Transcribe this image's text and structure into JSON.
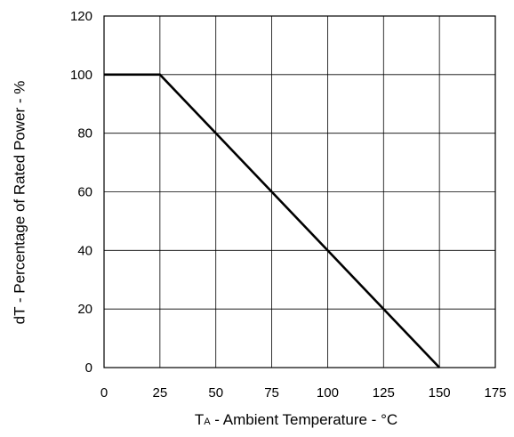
{
  "chart_data": {
    "type": "line",
    "xlabel_main": "T",
    "xlabel_sub": "A",
    "xlabel_rest": " - Ambient Temperature - °C",
    "ylabel": "dT - Percentage of Rated Power - %",
    "xlim": [
      0,
      175
    ],
    "ylim": [
      0,
      120
    ],
    "x_ticks": [
      0,
      25,
      50,
      75,
      100,
      125,
      150,
      175
    ],
    "y_ticks": [
      0,
      20,
      40,
      60,
      80,
      100,
      120
    ],
    "grid": true,
    "series": [
      {
        "x": [
          0,
          25,
          150
        ],
        "y": [
          100,
          100,
          0
        ]
      }
    ],
    "line_color": "#000000"
  }
}
